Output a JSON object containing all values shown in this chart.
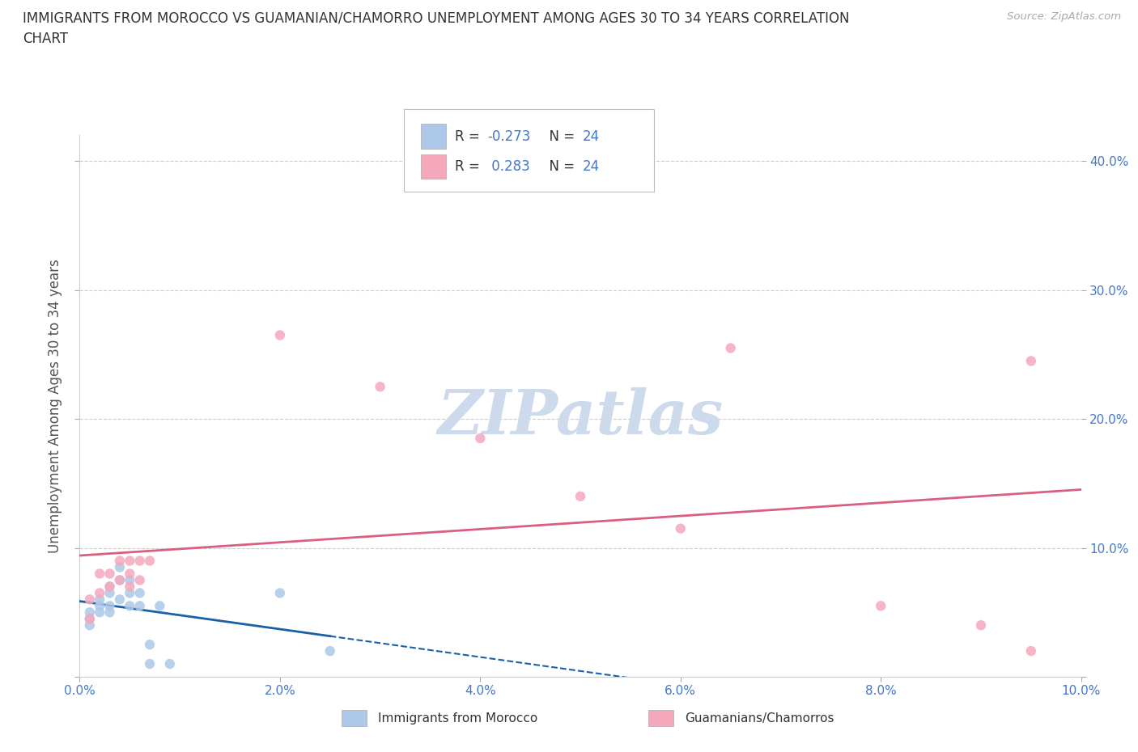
{
  "title": "IMMIGRANTS FROM MOROCCO VS GUAMANIAN/CHAMORRO UNEMPLOYMENT AMONG AGES 30 TO 34 YEARS CORRELATION\nCHART",
  "source": "Source: ZipAtlas.com",
  "ylabel": "Unemployment Among Ages 30 to 34 years",
  "xlim": [
    0.0,
    0.1
  ],
  "ylim": [
    0.0,
    0.42
  ],
  "xticks": [
    0.0,
    0.02,
    0.04,
    0.06,
    0.08,
    0.1
  ],
  "xticklabels": [
    "0.0%",
    "2.0%",
    "4.0%",
    "6.0%",
    "8.0%",
    "10.0%"
  ],
  "yticks": [
    0.0,
    0.1,
    0.2,
    0.3,
    0.4
  ],
  "yticklabels": [
    "",
    "10.0%",
    "20.0%",
    "30.0%",
    "40.0%"
  ],
  "R_morocco": -0.273,
  "N_morocco": 24,
  "R_guam": 0.283,
  "N_guam": 24,
  "morocco_color": "#adc8e8",
  "guam_color": "#f5a8bc",
  "trend_morocco_color": "#1a5fa8",
  "trend_guam_color": "#d95f7f",
  "morocco_x": [
    0.001,
    0.001,
    0.001,
    0.002,
    0.002,
    0.002,
    0.003,
    0.003,
    0.003,
    0.003,
    0.004,
    0.004,
    0.004,
    0.005,
    0.005,
    0.005,
    0.006,
    0.006,
    0.007,
    0.007,
    0.008,
    0.009,
    0.02,
    0.025
  ],
  "morocco_y": [
    0.04,
    0.05,
    0.045,
    0.055,
    0.06,
    0.05,
    0.05,
    0.055,
    0.065,
    0.07,
    0.075,
    0.085,
    0.06,
    0.065,
    0.075,
    0.055,
    0.055,
    0.065,
    0.025,
    0.01,
    0.055,
    0.01,
    0.065,
    0.02
  ],
  "guam_x": [
    0.001,
    0.001,
    0.002,
    0.002,
    0.003,
    0.003,
    0.004,
    0.004,
    0.005,
    0.005,
    0.005,
    0.006,
    0.006,
    0.007,
    0.02,
    0.03,
    0.04,
    0.05,
    0.06,
    0.065,
    0.08,
    0.09,
    0.095,
    0.095
  ],
  "guam_y": [
    0.045,
    0.06,
    0.065,
    0.08,
    0.07,
    0.08,
    0.075,
    0.09,
    0.07,
    0.08,
    0.09,
    0.075,
    0.09,
    0.09,
    0.265,
    0.225,
    0.185,
    0.14,
    0.115,
    0.255,
    0.055,
    0.04,
    0.245,
    0.02
  ],
  "watermark": "ZIPatlas",
  "watermark_color": "#ccdaec",
  "background_color": "#ffffff",
  "grid_color": "#cccccc"
}
